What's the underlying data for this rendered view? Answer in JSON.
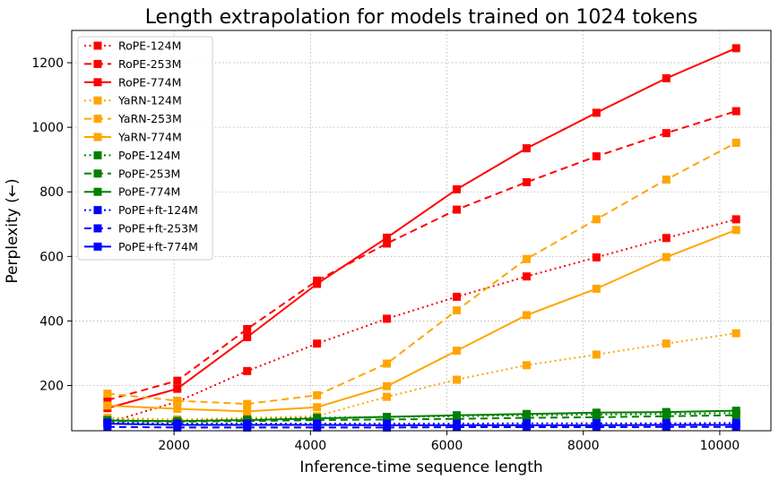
{
  "chart_data": {
    "type": "line",
    "title": "Length extrapolation for models trained on 1024 tokens",
    "xlabel": "Inference-time sequence length",
    "ylabel": "Perplexity (←)",
    "xlim": [
      500,
      10750
    ],
    "ylim": [
      60,
      1300
    ],
    "xticks": [
      2000,
      4000,
      6000,
      8000,
      10000
    ],
    "yticks": [
      200,
      400,
      600,
      800,
      1000,
      1200
    ],
    "grid": true,
    "legend_position": "top-left",
    "x": [
      1024,
      2048,
      3072,
      4096,
      5120,
      6144,
      7168,
      8192,
      9216,
      10240
    ],
    "series": [
      {
        "name": "RoPE-124M",
        "color": "#ff0000",
        "dash": "dotted",
        "values": [
          85,
          150,
          245,
          330,
          407,
          475,
          538,
          597,
          657,
          715
        ]
      },
      {
        "name": "RoPE-253M",
        "color": "#ff0000",
        "dash": "dashed",
        "values": [
          155,
          215,
          375,
          525,
          640,
          745,
          830,
          910,
          982,
          1050
        ]
      },
      {
        "name": "RoPE-774M",
        "color": "#ff0000",
        "dash": "solid",
        "values": [
          130,
          190,
          350,
          515,
          658,
          808,
          935,
          1045,
          1152,
          1245
        ]
      },
      {
        "name": "YaRN-124M",
        "color": "#ffa500",
        "dash": "dotted",
        "values": [
          100,
          95,
          100,
          105,
          165,
          218,
          263,
          296,
          330,
          362
        ]
      },
      {
        "name": "YaRN-253M",
        "color": "#ffa500",
        "dash": "dashed",
        "values": [
          175,
          153,
          143,
          170,
          268,
          433,
          592,
          715,
          838,
          952
        ]
      },
      {
        "name": "YaRN-774M",
        "color": "#ffa500",
        "dash": "solid",
        "values": [
          138,
          128,
          120,
          133,
          198,
          308,
          418,
          500,
          598,
          682
        ]
      },
      {
        "name": "PoPE-124M",
        "color": "#008000",
        "dash": "dotted",
        "values": [
          93,
          90,
          95,
          100,
          103,
          105,
          108,
          110,
          112,
          115
        ]
      },
      {
        "name": "PoPE-253M",
        "color": "#008000",
        "dash": "dashed",
        "values": [
          90,
          88,
          90,
          93,
          95,
          97,
          100,
          102,
          105,
          108
        ]
      },
      {
        "name": "PoPE-774M",
        "color": "#008000",
        "dash": "solid",
        "values": [
          92,
          90,
          93,
          98,
          103,
          108,
          112,
          116,
          118,
          122
        ]
      },
      {
        "name": "PoPE+ft-124M",
        "color": "#0000ff",
        "dash": "dotted",
        "values": [
          85,
          82,
          82,
          82,
          82,
          82,
          83,
          83,
          83,
          84
        ]
      },
      {
        "name": "PoPE+ft-253M",
        "color": "#0000ff",
        "dash": "dashed",
        "values": [
          72,
          70,
          70,
          70,
          70,
          71,
          71,
          71,
          72,
          72
        ]
      },
      {
        "name": "PoPE+ft-774M",
        "color": "#0000ff",
        "dash": "solid",
        "values": [
          82,
          78,
          78,
          78,
          77,
          77,
          77,
          77,
          78,
          78
        ]
      }
    ]
  }
}
